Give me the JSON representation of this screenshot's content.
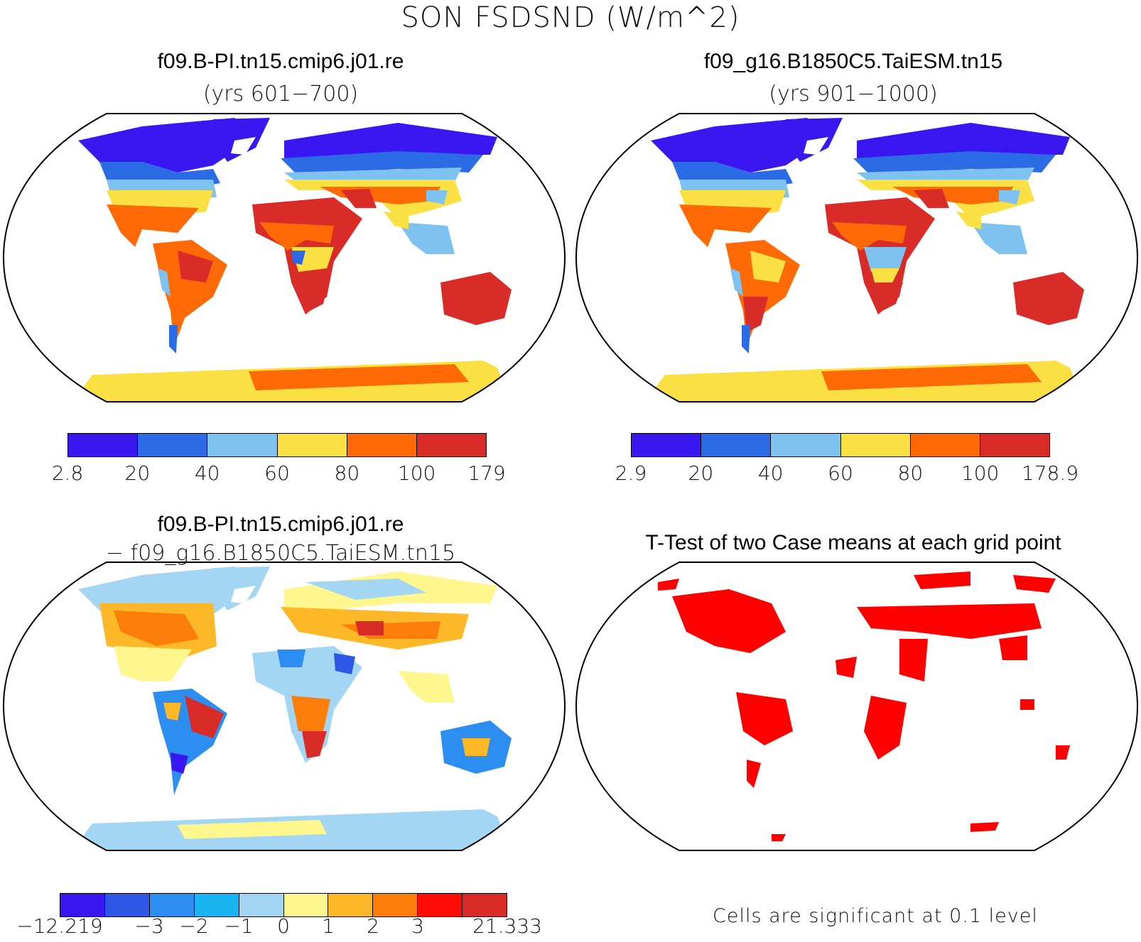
{
  "title": "SON FSDSND (W/m^2)",
  "panels": {
    "p1": {
      "title": "f09.B-PI.tn15.cmip6.j01.re",
      "subtitle": "(yrs 601−700)"
    },
    "p2": {
      "title": "f09_g16.B1850C5.TaiESM.tn15",
      "subtitle": "(yrs 901−1000)"
    },
    "p3": {
      "title": "f09.B-PI.tn15.cmip6.j01.re",
      "subtitle": "− f09_g16.B1850C5.TaiESM.tn15"
    },
    "p4": {
      "title": "T-Test of two Case means at each grid point",
      "note": "Cells are significant at 0.1 level"
    }
  },
  "colorbars": {
    "cb1": {
      "colors": [
        "#3a16f0",
        "#2b6ce6",
        "#7ec3f0",
        "#fbe043",
        "#ff6a06",
        "#d92b28"
      ],
      "labels": [
        "2.8",
        "20",
        "40",
        "60",
        "80",
        "100",
        "179"
      ]
    },
    "cb2": {
      "colors": [
        "#3a16f0",
        "#2b6ce6",
        "#7ec3f0",
        "#fbe043",
        "#ff6a06",
        "#d92b28"
      ],
      "labels": [
        "2.9",
        "20",
        "40",
        "60",
        "80",
        "100",
        "178.9"
      ]
    },
    "cb3": {
      "colors": [
        "#3a16f0",
        "#2d57e4",
        "#2b8ef0",
        "#19b4f2",
        "#a2d6f2",
        "#fff68e",
        "#fdb827",
        "#fd7d0a",
        "#ff0c06",
        "#d92b28"
      ],
      "labels": [
        "−12.219",
        "−3",
        "−2",
        "−1",
        "0",
        "1",
        "2",
        "3",
        "21.333"
      ],
      "label_positions": [
        0,
        2,
        3,
        4,
        5,
        6,
        7,
        8,
        10
      ]
    }
  },
  "significance_color": "#ff0000"
}
